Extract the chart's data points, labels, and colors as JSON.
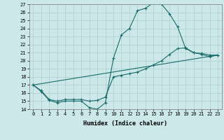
{
  "xlabel": "Humidex (Indice chaleur)",
  "xlim": [
    -0.5,
    23.5
  ],
  "ylim": [
    14,
    27
  ],
  "xticks": [
    0,
    1,
    2,
    3,
    4,
    5,
    6,
    7,
    8,
    9,
    10,
    11,
    12,
    13,
    14,
    15,
    16,
    17,
    18,
    19,
    20,
    21,
    22,
    23
  ],
  "yticks": [
    14,
    15,
    16,
    17,
    18,
    19,
    20,
    21,
    22,
    23,
    24,
    25,
    26,
    27
  ],
  "bg_color": "#cce8e8",
  "line_color": "#1a6b6b",
  "grid_color": "#aacece",
  "line1_x": [
    0,
    1,
    2,
    3,
    4,
    5,
    6,
    7,
    8,
    9,
    10,
    11,
    12,
    13,
    14,
    15,
    16,
    17,
    18,
    19,
    20,
    21,
    22,
    23
  ],
  "line1_y": [
    17.0,
    16.2,
    15.1,
    14.8,
    15.0,
    15.0,
    15.0,
    14.2,
    14.0,
    14.8,
    20.3,
    23.2,
    24.0,
    26.2,
    26.5,
    27.2,
    27.0,
    25.8,
    24.2,
    21.5,
    21.0,
    20.8,
    20.5,
    20.7
  ],
  "line2_x": [
    0,
    1,
    2,
    3,
    4,
    5,
    6,
    7,
    8,
    9,
    10,
    11,
    12,
    13,
    14,
    15,
    16,
    17,
    18,
    19,
    20,
    21,
    22,
    23
  ],
  "line2_y": [
    17.0,
    16.3,
    15.2,
    15.0,
    15.2,
    15.2,
    15.2,
    15.0,
    15.1,
    15.5,
    18.0,
    18.2,
    18.4,
    18.6,
    19.0,
    19.5,
    20.0,
    20.8,
    21.5,
    21.6,
    21.0,
    20.9,
    20.7,
    20.7
  ],
  "line3_x": [
    0,
    23
  ],
  "line3_y": [
    17.0,
    20.7
  ],
  "tick_fontsize": 5.0,
  "xlabel_fontsize": 6.0
}
